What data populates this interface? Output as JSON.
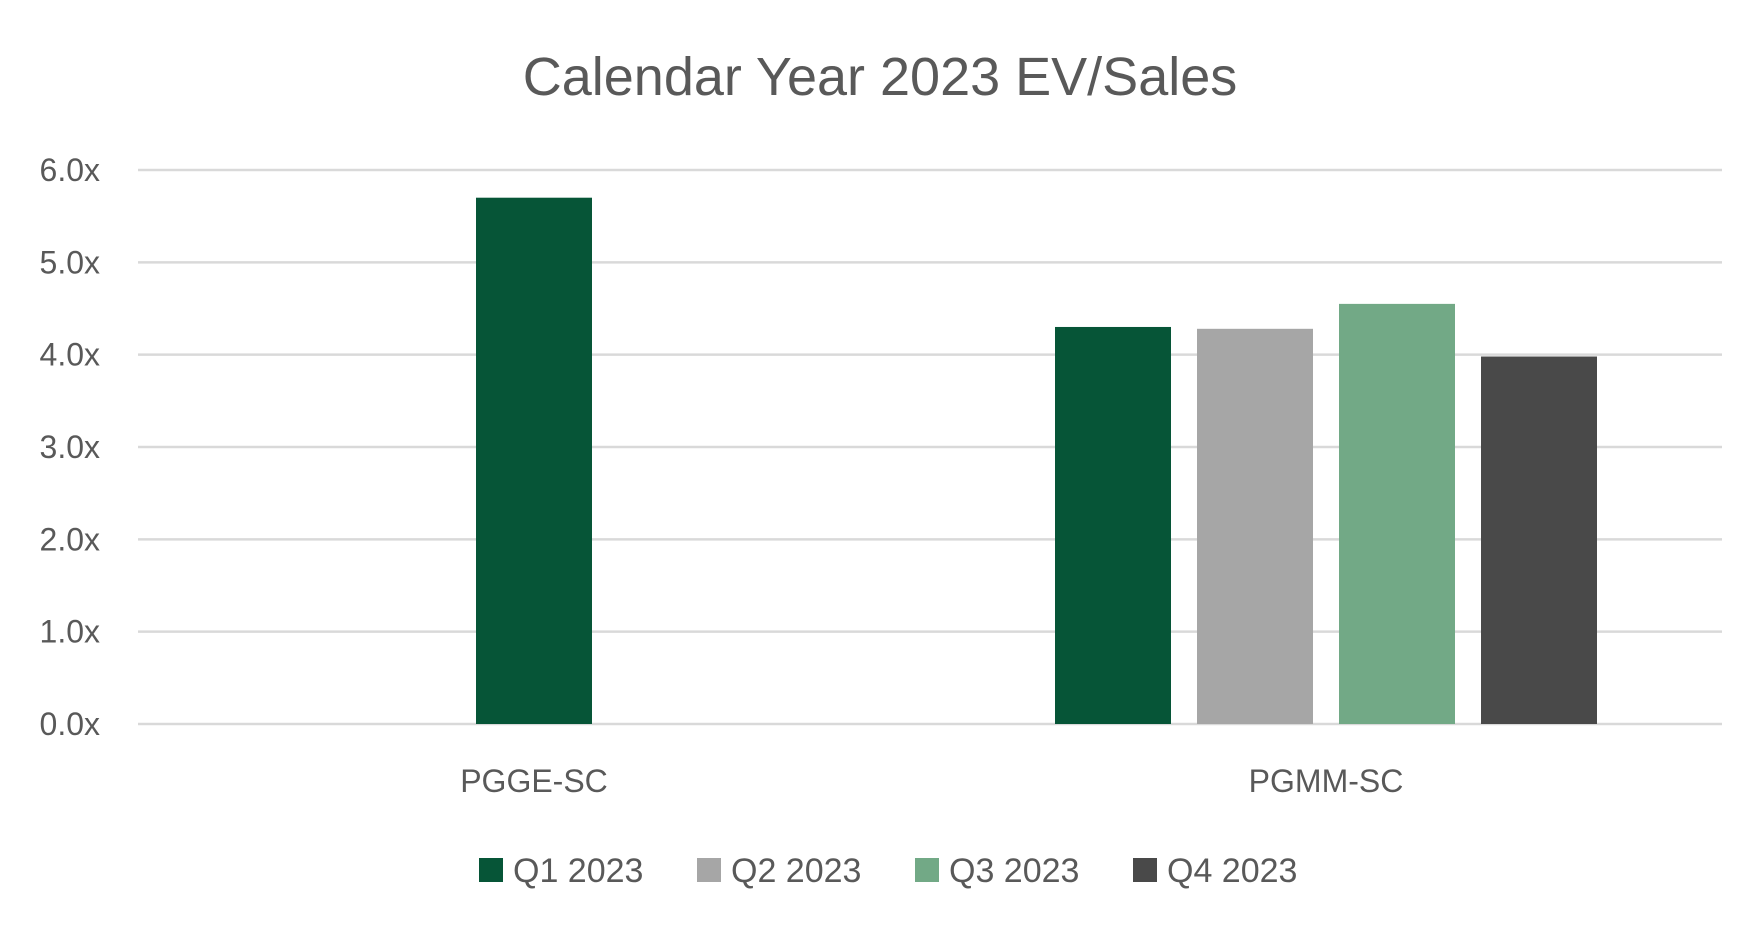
{
  "chart_data": {
    "type": "bar",
    "title": "Calendar Year 2023 EV/Sales",
    "xlabel": "",
    "ylabel": "",
    "categories": [
      "PGGE-SC",
      "PGMM-SC"
    ],
    "series": [
      {
        "name": "Q1 2023",
        "color": "#065537",
        "values": [
          5.7,
          4.3
        ]
      },
      {
        "name": "Q2 2023",
        "color": "#a6a6a6",
        "values": [
          null,
          4.28
        ]
      },
      {
        "name": "Q3 2023",
        "color": "#72a986",
        "values": [
          null,
          4.55
        ]
      },
      {
        "name": "Q4 2023",
        "color": "#494949",
        "values": [
          null,
          3.98
        ]
      }
    ],
    "ylim": [
      0,
      6
    ],
    "yticks": [
      0,
      1,
      2,
      3,
      4,
      5,
      6
    ],
    "ytick_labels": [
      "0.0x",
      "1.0x",
      "2.0x",
      "3.0x",
      "4.0x",
      "5.0x",
      "6.0x"
    ],
    "grid": true,
    "legend_position": "bottom"
  }
}
